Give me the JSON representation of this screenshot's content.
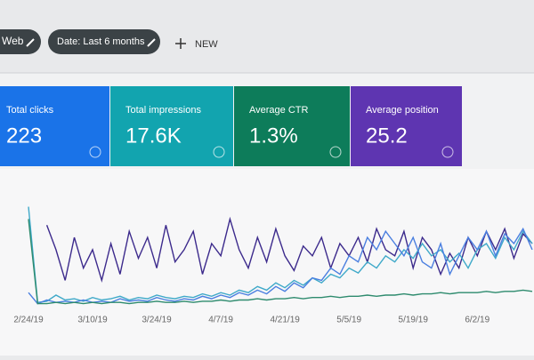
{
  "header": {
    "chips": [
      "Web",
      "Date: Last 6 months"
    ],
    "new": "NEW"
  },
  "cards": [
    {
      "label": "Total clicks",
      "value": "223",
      "color": "#1a73e8"
    },
    {
      "label": "Total impressions",
      "value": "17.6K",
      "color": "#12a4af"
    },
    {
      "label": "Average CTR",
      "value": "1.3%",
      "color": "#0d7c5a"
    },
    {
      "label": "Average position",
      "value": "25.2",
      "color": "#5e35b1"
    }
  ],
  "chart_data": {
    "type": "line",
    "categories": [
      "2/24/19",
      null,
      null,
      null,
      null,
      null,
      null,
      "3/10/19",
      null,
      null,
      null,
      null,
      null,
      null,
      "3/24/19",
      null,
      null,
      null,
      null,
      null,
      null,
      "4/7/19",
      null,
      null,
      null,
      null,
      null,
      null,
      "4/21/19",
      null,
      null,
      null,
      null,
      null,
      null,
      "5/5/19",
      null,
      null,
      null,
      null,
      null,
      null,
      "5/19/19",
      null,
      null,
      null,
      null,
      null,
      null,
      "6/2/19",
      null,
      null,
      null,
      null,
      null,
      null
    ],
    "ylim": [
      0,
      100
    ],
    "series": [
      {
        "color": "#3c2a8c",
        "values": [
          95,
          null,
          65,
          45,
          20,
          55,
          30,
          45,
          20,
          50,
          25,
          60,
          38,
          55,
          30,
          65,
          35,
          45,
          60,
          25,
          50,
          40,
          70,
          45,
          30,
          55,
          35,
          62,
          40,
          28,
          48,
          40,
          55,
          30,
          50,
          40,
          55,
          35,
          62,
          45,
          40,
          60,
          30,
          55,
          45,
          25,
          42,
          30,
          55,
          40,
          60,
          45,
          62,
          38,
          58,
          50
        ]
      },
      {
        "color": "#3fa9c9",
        "values": [
          80,
          2,
          3,
          8,
          4,
          5,
          3,
          6,
          4,
          5,
          7,
          4,
          6,
          5,
          8,
          6,
          5,
          7,
          6,
          9,
          7,
          10,
          8,
          12,
          10,
          15,
          12,
          18,
          14,
          20,
          16,
          22,
          18,
          25,
          22,
          30,
          26,
          35,
          30,
          40,
          35,
          45,
          38,
          50,
          40,
          45,
          35,
          42,
          30,
          45,
          50,
          38,
          55,
          45,
          60,
          50
        ]
      },
      {
        "color": "#4a7fe0",
        "values": [
          10,
          1,
          4,
          2,
          3,
          2,
          4,
          2,
          3,
          2,
          5,
          3,
          4,
          3,
          6,
          4,
          3,
          5,
          4,
          7,
          5,
          8,
          6,
          10,
          8,
          12,
          9,
          15,
          11,
          18,
          14,
          22,
          20,
          30,
          25,
          40,
          35,
          55,
          45,
          60,
          50,
          40,
          55,
          35,
          30,
          50,
          25,
          40,
          55,
          45,
          60,
          40,
          58,
          50,
          62,
          45
        ]
      },
      {
        "color": "#2e8b6e",
        "values": [
          70,
          1,
          1,
          2,
          1,
          2,
          1,
          2,
          1,
          2,
          2,
          1,
          2,
          2,
          3,
          2,
          2,
          3,
          2,
          3,
          3,
          4,
          3,
          4,
          4,
          5,
          4,
          5,
          5,
          6,
          5,
          6,
          6,
          7,
          6,
          7,
          7,
          8,
          7,
          8,
          8,
          9,
          8,
          9,
          9,
          10,
          9,
          10,
          10,
          10,
          11,
          10,
          11,
          11,
          12,
          11
        ]
      }
    ]
  }
}
